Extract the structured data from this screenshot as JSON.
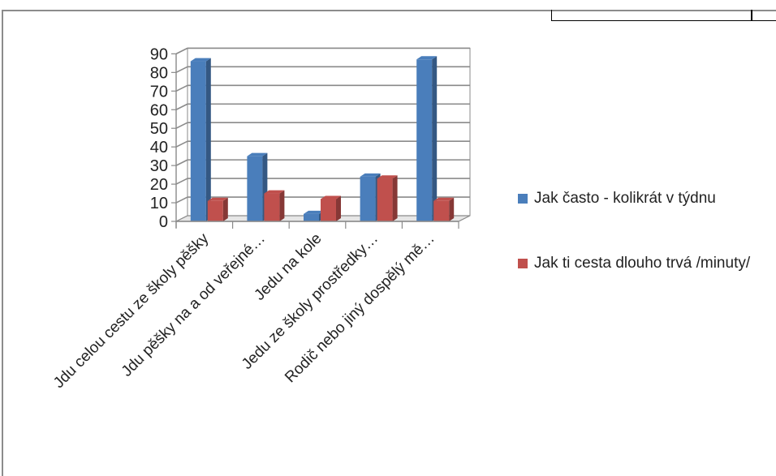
{
  "chart_data": {
    "type": "bar",
    "style": "3d-clustered-column",
    "categories": [
      "Jdu celou cestu ze školy pěšky",
      "Jdu pěšky na a od veřejné…",
      "Jedu na kole",
      "Jedu ze školy prostředky…",
      "Rodič nebo jiný dospělý mě…"
    ],
    "series": [
      {
        "name": "Jak často - kolikrát v týdnu",
        "color": "#4a7ebb",
        "values": [
          86,
          35,
          4,
          24,
          87
        ]
      },
      {
        "name": "Jak ti cesta dlouho trvá /minuty/",
        "color": "#c0504d",
        "values": [
          11,
          15,
          12,
          23,
          11
        ]
      }
    ],
    "yticks": [
      0,
      10,
      20,
      30,
      40,
      50,
      60,
      70,
      80,
      90
    ],
    "ylim": [
      0,
      90
    ],
    "grid": true,
    "legend_position": "right"
  },
  "legend": {
    "items": [
      {
        "label": "Jak často - kolikrát v týdnu",
        "color": "#4a7ebb"
      },
      {
        "label": "Jak ti cesta dlouho trvá /minuty/",
        "color": "#c0504d"
      }
    ]
  }
}
